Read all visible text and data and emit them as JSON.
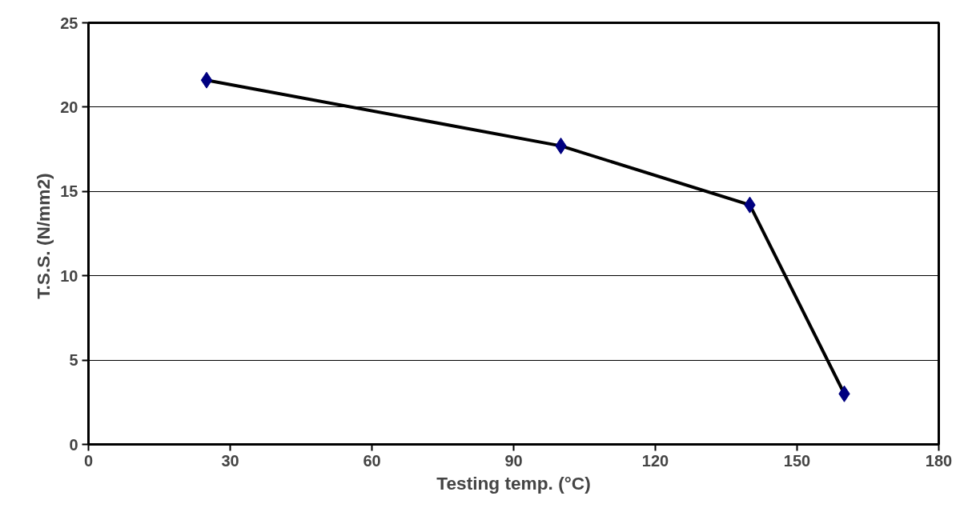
{
  "chart_data": {
    "type": "line",
    "xlabel": "Testing temp. (°C)",
    "ylabel": "T.S.S.  (N/mm2)",
    "x": [
      25,
      100,
      140,
      160
    ],
    "series": [
      {
        "color": "#000000",
        "values": [
          21.6,
          17.7,
          14.2,
          3.0
        ]
      }
    ],
    "xlim": [
      0,
      180
    ],
    "xticks": [
      0,
      30,
      60,
      90,
      120,
      150,
      180
    ],
    "ylim": [
      0,
      25
    ],
    "yticks": [
      0,
      5,
      10,
      15,
      20,
      25
    ],
    "grid": "y",
    "marker": "diamond",
    "line_style": "solid"
  }
}
